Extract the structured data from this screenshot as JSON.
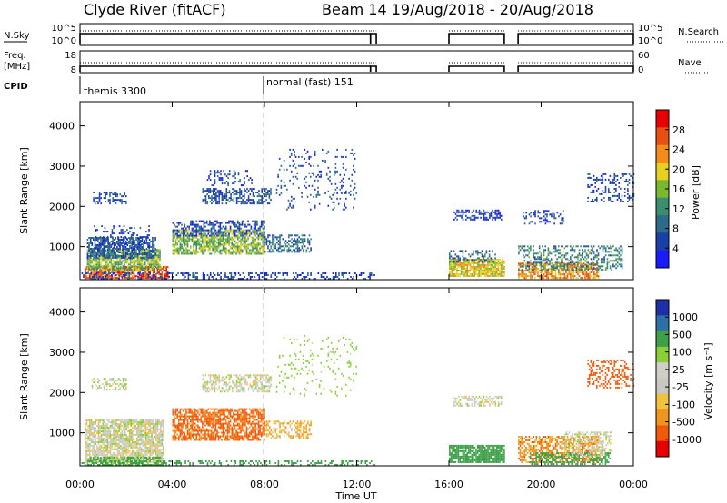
{
  "header": {
    "title": "Clyde River (fitACF)",
    "beam_info": "Beam 14  19/Aug/2018 - 20/Aug/2018"
  },
  "top_panel": {
    "nsky_label": "N.Sky",
    "nsky_ticks": [
      "10^5",
      "10^0"
    ],
    "nsearch_label": "N.Search",
    "freq_label": "Freq.",
    "freq_unit": "[MHz]",
    "freq_ticks": [
      "18",
      "8"
    ],
    "nave_ticks": [
      "60",
      "0"
    ],
    "nave_label": "Nave",
    "cpid_label": "CPID",
    "cpid_entries": [
      {
        "text": "themis 3300",
        "time_h": 0.0
      },
      {
        "text": "normal (fast) 151",
        "time_h": 8.0
      }
    ]
  },
  "colors": {
    "power": [
      "#1a1aff",
      "#1b3fa8",
      "#2e6b88",
      "#3b8f6e",
      "#7ab830",
      "#e8d020",
      "#f28c1a",
      "#e84f12",
      "#e80000"
    ],
    "velocity": [
      "#e80000",
      "#f25a0a",
      "#f0951e",
      "#f2c23c",
      "#c8c8c0",
      "#cfcfc7",
      "#8acf3a",
      "#3d9f48",
      "#2d6fa8",
      "#1e2ea8"
    ]
  },
  "chart_data": [
    {
      "type": "heatmap",
      "panel": "power",
      "title": "",
      "ylabel": "Slant Range [km]",
      "yticks": [
        "1000",
        "2000",
        "3000",
        "4000"
      ],
      "ylim": [
        180,
        4600
      ],
      "xlim_h": [
        0,
        24
      ],
      "colorbar_label": "Power [dB]",
      "colorbar_ticks": [
        "4",
        "8",
        "12",
        "16",
        "20",
        "24",
        "28"
      ],
      "colorbar_range": [
        0,
        32
      ],
      "regions": [
        {
          "t0": 0.2,
          "t1": 3.8,
          "r0": 200,
          "r1": 500,
          "v": 30,
          "d": 0.75
        },
        {
          "t0": 0.3,
          "t1": 3.5,
          "r0": 400,
          "r1": 900,
          "v": 18,
          "d": 0.8
        },
        {
          "t0": 0.3,
          "t1": 3.3,
          "r0": 700,
          "r1": 1200,
          "v": 8,
          "d": 0.7
        },
        {
          "t0": 0.6,
          "t1": 3.0,
          "r0": 900,
          "r1": 1500,
          "v": 6,
          "d": 0.25
        },
        {
          "t0": 0.5,
          "t1": 2.0,
          "r0": 2050,
          "r1": 2350,
          "v": 7,
          "d": 0.45
        },
        {
          "t0": 4.0,
          "t1": 8.0,
          "r0": 800,
          "r1": 1400,
          "v": 18,
          "d": 0.7
        },
        {
          "t0": 4.0,
          "t1": 8.0,
          "r0": 1250,
          "r1": 1650,
          "v": 6,
          "d": 0.45
        },
        {
          "t0": 8.0,
          "t1": 10.0,
          "r0": 850,
          "r1": 1300,
          "v": 10,
          "d": 0.5
        },
        {
          "t0": 5.3,
          "t1": 8.3,
          "r0": 2050,
          "r1": 2450,
          "v": 8,
          "d": 0.5
        },
        {
          "t0": 5.5,
          "t1": 7.5,
          "r0": 2500,
          "r1": 2900,
          "v": 6,
          "d": 0.25
        },
        {
          "t0": 8.5,
          "t1": 12.0,
          "r0": 1900,
          "r1": 3400,
          "v": 7,
          "d": 0.1
        },
        {
          "t0": 0.0,
          "t1": 12.8,
          "r0": 180,
          "r1": 320,
          "v": 6,
          "d": 0.35
        },
        {
          "t0": 16.0,
          "t1": 18.4,
          "r0": 250,
          "r1": 700,
          "v": 22,
          "d": 0.85
        },
        {
          "t0": 16.0,
          "t1": 18.0,
          "r0": 600,
          "r1": 900,
          "v": 10,
          "d": 0.35
        },
        {
          "t0": 16.2,
          "t1": 18.3,
          "r0": 1650,
          "r1": 1900,
          "v": 6,
          "d": 0.5
        },
        {
          "t0": 19.0,
          "t1": 22.5,
          "r0": 200,
          "r1": 600,
          "v": 26,
          "d": 0.7
        },
        {
          "t0": 19.0,
          "t1": 23.5,
          "r0": 400,
          "r1": 1000,
          "v": 12,
          "d": 0.4
        },
        {
          "t0": 19.2,
          "t1": 21.0,
          "r0": 1550,
          "r1": 1900,
          "v": 6,
          "d": 0.25
        },
        {
          "t0": 22.0,
          "t1": 24.0,
          "r0": 2100,
          "r1": 2800,
          "v": 7,
          "d": 0.3
        }
      ]
    },
    {
      "type": "heatmap",
      "panel": "velocity",
      "title": "",
      "ylabel": "Slant Range [km]",
      "yticks": [
        "1000",
        "2000",
        "3000",
        "4000"
      ],
      "ylim": [
        180,
        4600
      ],
      "xlim_h": [
        0,
        24
      ],
      "xticks": [
        "00:00",
        "04:00",
        "08:00",
        "12:00",
        "16:00",
        "20:00",
        "00:00"
      ],
      "xlabel": "Time UT",
      "colorbar_label": "Velocity [m s⁻¹]",
      "colorbar_ticks": [
        "1000",
        "500",
        "100",
        "25",
        "-25",
        "-100",
        "-500",
        "-1000"
      ],
      "colorbar_range": [
        -1000,
        1000
      ],
      "regions": [
        {
          "t0": 0.2,
          "t1": 3.6,
          "r0": 250,
          "r1": 1300,
          "v": 0,
          "d": 0.8
        },
        {
          "t0": 0.3,
          "t1": 3.5,
          "r0": 180,
          "r1": 400,
          "v": 120,
          "d": 0.6
        },
        {
          "t0": 0.5,
          "t1": 2.0,
          "r0": 2050,
          "r1": 2350,
          "v": 5,
          "d": 0.5
        },
        {
          "t0": 4.0,
          "t1": 8.0,
          "r0": 800,
          "r1": 1600,
          "v": -120,
          "d": 0.7
        },
        {
          "t0": 8.0,
          "t1": 10.0,
          "r0": 850,
          "r1": 1300,
          "v": -60,
          "d": 0.45
        },
        {
          "t0": 5.3,
          "t1": 8.3,
          "r0": 2000,
          "r1": 2450,
          "v": 0,
          "d": 0.55
        },
        {
          "t0": 8.5,
          "t1": 12.0,
          "r0": 1900,
          "r1": 3400,
          "v": 60,
          "d": 0.08
        },
        {
          "t0": 0.0,
          "t1": 12.8,
          "r0": 180,
          "r1": 300,
          "v": 150,
          "d": 0.35
        },
        {
          "t0": 16.0,
          "t1": 18.4,
          "r0": 250,
          "r1": 700,
          "v": 200,
          "d": 0.85
        },
        {
          "t0": 16.2,
          "t1": 18.3,
          "r0": 1650,
          "r1": 1900,
          "v": 0,
          "d": 0.5
        },
        {
          "t0": 19.0,
          "t1": 22.5,
          "r0": 250,
          "r1": 900,
          "v": -80,
          "d": 0.6
        },
        {
          "t0": 19.5,
          "t1": 23.0,
          "r0": 200,
          "r1": 500,
          "v": 150,
          "d": 0.5
        },
        {
          "t0": 21.0,
          "t1": 23.0,
          "r0": 400,
          "r1": 1000,
          "v": 0,
          "d": 0.4
        },
        {
          "t0": 22.0,
          "t1": 24.0,
          "r0": 2100,
          "r1": 2800,
          "v": -200,
          "d": 0.35
        }
      ]
    }
  ]
}
